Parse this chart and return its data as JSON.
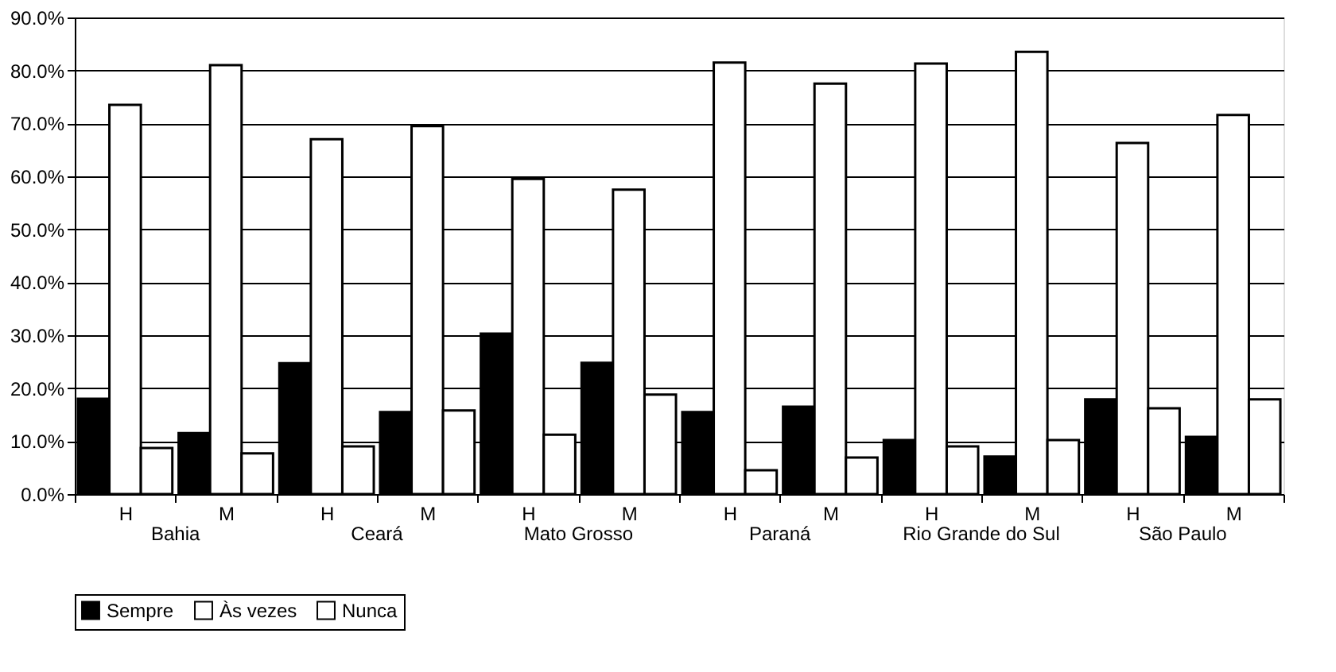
{
  "chart_data": {
    "type": "bar",
    "categories": [
      "H",
      "M",
      "H",
      "M",
      "H",
      "M",
      "H",
      "M",
      "H",
      "M",
      "H",
      "M"
    ],
    "annotations": [
      "Bahia",
      "Ceará",
      "Mato Grosso",
      "Paraná",
      "Rio Grande do Sul",
      "São Paulo"
    ],
    "series": [
      {
        "name": "Sempre",
        "color": "#000000",
        "values": [
          18,
          11.5,
          24.7,
          15.5,
          30.3,
          24.8,
          15.5,
          16.5,
          10.2,
          7.1,
          17.9,
          10.8
        ]
      },
      {
        "name": "Às vezes",
        "color": "#ffffff",
        "values": [
          73.5,
          81,
          67,
          69.5,
          59.5,
          57.5,
          81.5,
          77.5,
          81.3,
          83.5,
          66.3,
          71.6
        ]
      },
      {
        "name": "Nunca",
        "color": "#ffffff",
        "values": [
          8.7,
          7.7,
          9,
          15.8,
          11.2,
          18.8,
          4.5,
          6.9,
          9,
          10.2,
          16.2,
          17.9
        ]
      }
    ],
    "ylim": [
      0,
      90
    ],
    "yticks": [
      {
        "value": 0,
        "label": "0.0%"
      },
      {
        "value": 10,
        "label": "10.0%"
      },
      {
        "value": 20,
        "label": "20.0%"
      },
      {
        "value": 30,
        "label": "30.0%"
      },
      {
        "value": 40,
        "label": "40.0%"
      },
      {
        "value": 50,
        "label": "50.0%"
      },
      {
        "value": 60,
        "label": "60.0%"
      },
      {
        "value": 70,
        "label": "70.0%"
      },
      {
        "value": 80,
        "label": "80.0%"
      },
      {
        "value": 90,
        "label": "90.0%"
      }
    ],
    "grid": "y",
    "legend": "bottom"
  }
}
